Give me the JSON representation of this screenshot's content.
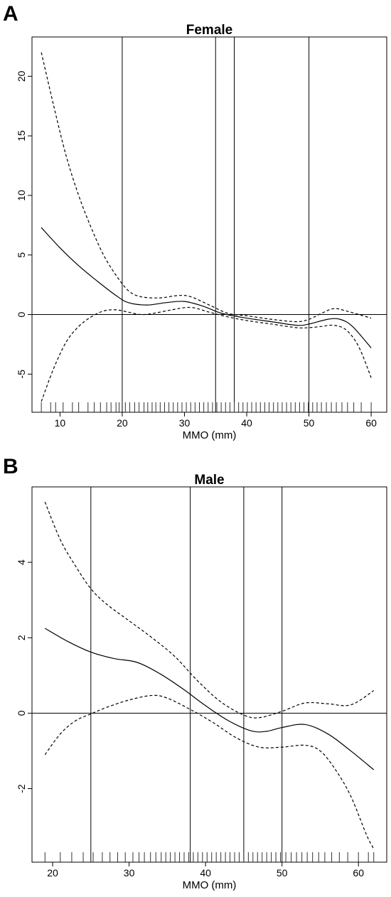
{
  "chart_data": [
    {
      "type": "line",
      "panel_label": "A",
      "title": "Female",
      "xlabel": "MMO (mm)",
      "ylabel": "",
      "xlim": [
        5.5,
        62.5
      ],
      "ylim": [
        -8.2,
        23.3
      ],
      "xticks": [
        10,
        20,
        30,
        40,
        50,
        60
      ],
      "xtick_labels": [
        "10",
        "20",
        "30",
        "40",
        "50",
        "60"
      ],
      "yticks": [
        -5,
        0,
        5,
        10,
        15,
        20
      ],
      "ytick_labels": [
        "-5",
        "0",
        "5",
        "10",
        "15",
        "20"
      ],
      "reference_lines": {
        "vertical_x": [
          20,
          35,
          38,
          50
        ],
        "horizontal_y": [
          0
        ]
      },
      "series": [
        {
          "style": "solid",
          "x": [
            7,
            10,
            13,
            16,
            19,
            21,
            24,
            27,
            30,
            33,
            36,
            40,
            44,
            48,
            50,
            53,
            55,
            57,
            60
          ],
          "y": [
            7.3,
            5.6,
            4.1,
            2.8,
            1.6,
            1.0,
            0.8,
            1.0,
            1.1,
            0.7,
            0.1,
            -0.3,
            -0.6,
            -0.9,
            -0.8,
            -0.4,
            -0.4,
            -1.0,
            -2.8
          ]
        },
        {
          "style": "dashed",
          "x": [
            7,
            9,
            11,
            13,
            15,
            17,
            19,
            21,
            23,
            26,
            29,
            31,
            34,
            37,
            40,
            44,
            48,
            50,
            52,
            54,
            56,
            60
          ],
          "y": [
            22.0,
            17.5,
            13.3,
            10.0,
            7.3,
            5.0,
            3.3,
            2.0,
            1.5,
            1.4,
            1.6,
            1.5,
            0.8,
            0.1,
            -0.1,
            -0.4,
            -0.6,
            -0.4,
            0.1,
            0.5,
            0.3,
            -0.3
          ]
        },
        {
          "style": "dashed",
          "x": [
            7,
            9,
            11,
            13,
            15,
            17,
            19,
            21,
            23,
            25,
            28,
            31,
            34,
            37,
            40,
            44,
            48,
            50,
            52,
            54,
            56,
            58,
            60
          ],
          "y": [
            -7.3,
            -4.5,
            -2.3,
            -1.0,
            -0.2,
            0.3,
            0.4,
            0.2,
            0.0,
            0.1,
            0.4,
            0.6,
            0.2,
            -0.2,
            -0.5,
            -0.8,
            -1.1,
            -1.1,
            -1.0,
            -0.9,
            -1.3,
            -2.7,
            -5.3
          ]
        }
      ],
      "rug_x": [
        7,
        8.5,
        9.3,
        10.5,
        12,
        13,
        14.5,
        15.5,
        16.5,
        17.5,
        18.2,
        19,
        19.5,
        20.5,
        21.2,
        22,
        22.7,
        23.5,
        24.1,
        24.8,
        25.4,
        26.1,
        26.8,
        27.5,
        28.2,
        28.9,
        29.6,
        30.3,
        31,
        31.7,
        32.4,
        33.1,
        33.8,
        34.5,
        35.2,
        35.9,
        36.6,
        37.3,
        38,
        38.7,
        39.4,
        40.1,
        40.8,
        41.5,
        42.2,
        42.9,
        43.6,
        44.3,
        45,
        45.7,
        46.4,
        47.1,
        47.8,
        48.5,
        49.2,
        49.9,
        50.6,
        51.3,
        52,
        52.8,
        53.6,
        54.4,
        55.3,
        56.2,
        57.2,
        58.4,
        60
      ]
    },
    {
      "type": "line",
      "panel_label": "B",
      "title": "Male",
      "xlabel": "MMO (mm)",
      "ylabel": "",
      "xlim": [
        17.3,
        63.7
      ],
      "ylim": [
        -3.95,
        6.0
      ],
      "xticks": [
        20,
        30,
        40,
        50,
        60
      ],
      "xtick_labels": [
        "20",
        "30",
        "40",
        "50",
        "60"
      ],
      "yticks": [
        -2,
        0,
        2,
        4
      ],
      "ytick_labels": [
        "-2",
        "0",
        "2",
        "4"
      ],
      "reference_lines": {
        "vertical_x": [
          25,
          38,
          45,
          50
        ],
        "horizontal_y": [
          0
        ]
      },
      "series": [
        {
          "style": "solid",
          "x": [
            19,
            22,
            25,
            28,
            31,
            34,
            37,
            40,
            43,
            46,
            48,
            50,
            53,
            56,
            59,
            62
          ],
          "y": [
            2.25,
            1.9,
            1.62,
            1.45,
            1.35,
            1.05,
            0.65,
            0.2,
            -0.2,
            -0.47,
            -0.48,
            -0.38,
            -0.3,
            -0.55,
            -1.0,
            -1.5
          ]
        },
        {
          "style": "dashed",
          "x": [
            19,
            21,
            23,
            25,
            27,
            30,
            33,
            36,
            39,
            42,
            45,
            47,
            50,
            53,
            56,
            59,
            62
          ],
          "y": [
            5.6,
            4.6,
            3.9,
            3.3,
            2.9,
            2.45,
            2.0,
            1.5,
            0.85,
            0.3,
            -0.05,
            -0.12,
            0.05,
            0.27,
            0.25,
            0.22,
            0.6
          ]
        },
        {
          "style": "dashed",
          "x": [
            19,
            21,
            23,
            25,
            27,
            30,
            33,
            35,
            38,
            41,
            44,
            47,
            50,
            53,
            55,
            57,
            59,
            61,
            62
          ],
          "y": [
            -1.1,
            -0.55,
            -0.2,
            -0.02,
            0.15,
            0.35,
            0.47,
            0.4,
            0.1,
            -0.25,
            -0.65,
            -0.9,
            -0.9,
            -0.85,
            -1.0,
            -1.5,
            -2.2,
            -3.2,
            -3.6
          ]
        }
      ],
      "rug_x": [
        19,
        21,
        22.5,
        24,
        25.3,
        26.5,
        27.5,
        28.5,
        29.5,
        30.5,
        31.3,
        32,
        32.8,
        33.5,
        34.2,
        34.8,
        35.4,
        36,
        36.6,
        37.2,
        37.8,
        38.4,
        39,
        39.6,
        40.2,
        40.8,
        41.4,
        42,
        42.6,
        43.2,
        43.8,
        44.4,
        45,
        45.6,
        46.2,
        46.8,
        47.4,
        48,
        48.6,
        49.2,
        49.8,
        50.5,
        51.2,
        51.9,
        52.6,
        53.3,
        54,
        54.8,
        55.6,
        56.5,
        57.5,
        58.6,
        60,
        61.3,
        62
      ]
    }
  ]
}
